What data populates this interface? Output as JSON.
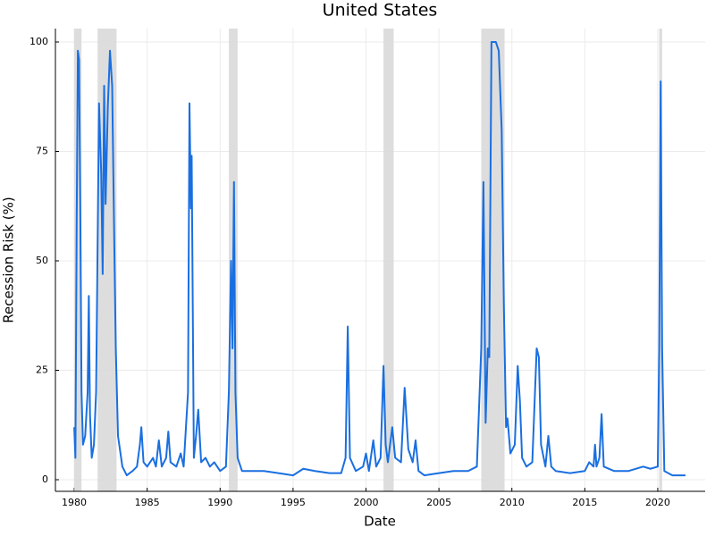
{
  "chart_data": {
    "type": "line",
    "title": "United States",
    "x_label": "Date",
    "y_label": "Recession Risk (%)",
    "xlim": [
      1978.71,
      2023.25
    ],
    "ylim": [
      -2.65,
      103.06
    ],
    "xticks": [
      1980,
      1985,
      1990,
      1995,
      2000,
      2005,
      2010,
      2015,
      2020
    ],
    "yticks": [
      0,
      25,
      50,
      75,
      100
    ],
    "grid": true,
    "recession_color": "#d9d9d9",
    "recessions": [
      [
        1980.0,
        1980.5
      ],
      [
        1981.6,
        1982.9
      ],
      [
        1990.6,
        1991.2
      ],
      [
        2001.2,
        2001.9
      ],
      [
        2007.9,
        2009.5
      ],
      [
        2020.1,
        2020.3
      ]
    ],
    "x": [
      1980.0,
      1980.08,
      1980.17,
      1980.25,
      1980.33,
      1980.42,
      1980.5,
      1980.6,
      1980.75,
      1980.92,
      1981.0,
      1981.08,
      1981.2,
      1981.35,
      1981.5,
      1981.7,
      1981.85,
      1981.95,
      1982.05,
      1982.15,
      1982.3,
      1982.45,
      1982.6,
      1982.75,
      1982.85,
      1983.0,
      1983.3,
      1983.6,
      1984.0,
      1984.3,
      1984.5,
      1984.6,
      1984.75,
      1985.0,
      1985.4,
      1985.6,
      1985.8,
      1986.0,
      1986.3,
      1986.45,
      1986.6,
      1987.0,
      1987.3,
      1987.5,
      1987.8,
      1987.9,
      1988.0,
      1988.05,
      1988.2,
      1988.35,
      1988.5,
      1988.7,
      1989.0,
      1989.3,
      1989.6,
      1990.0,
      1990.4,
      1990.6,
      1990.75,
      1990.85,
      1990.95,
      1991.05,
      1991.2,
      1991.5,
      1992.0,
      1993.0,
      1994.0,
      1995.0,
      1995.7,
      1996.5,
      1997.5,
      1998.3,
      1998.6,
      1998.75,
      1998.9,
      1999.3,
      1999.8,
      2000.0,
      2000.2,
      2000.5,
      2000.7,
      2001.0,
      2001.2,
      2001.35,
      2001.5,
      2001.8,
      2002.0,
      2002.4,
      2002.65,
      2002.9,
      2003.2,
      2003.4,
      2003.6,
      2004.0,
      2005.0,
      2006.0,
      2007.0,
      2007.6,
      2007.9,
      2008.05,
      2008.2,
      2008.35,
      2008.45,
      2008.6,
      2008.9,
      2009.1,
      2009.3,
      2009.45,
      2009.6,
      2009.7,
      2009.9,
      2010.2,
      2010.4,
      2010.55,
      2010.7,
      2011.0,
      2011.4,
      2011.7,
      2011.85,
      2012.0,
      2012.3,
      2012.5,
      2012.7,
      2013.0,
      2014.0,
      2015.0,
      2015.3,
      2015.6,
      2015.7,
      2015.8,
      2016.0,
      2016.15,
      2016.3,
      2017.0,
      2018.0,
      2019.0,
      2019.5,
      2020.0,
      2020.1,
      2020.2,
      2020.3,
      2020.45,
      2021.0,
      2021.9
    ],
    "series": [
      {
        "color": "#1a6fe0",
        "values": [
          12,
          5,
          60,
          98,
          96,
          60,
          20,
          8,
          10,
          20,
          42,
          15,
          5,
          8,
          20,
          86,
          70,
          47,
          90,
          63,
          85,
          98,
          90,
          53,
          30,
          10,
          3,
          1,
          2,
          3,
          8,
          12,
          4,
          3,
          5,
          3,
          9,
          3,
          5,
          11,
          4,
          3,
          6,
          3,
          20,
          86,
          62,
          74,
          5,
          10,
          16,
          4,
          5,
          3,
          4,
          2,
          3,
          20,
          50,
          30,
          68,
          20,
          5,
          2,
          2,
          2,
          1.5,
          1,
          2.5,
          2,
          1.5,
          1.5,
          5,
          35,
          5,
          2,
          3,
          6,
          2,
          9,
          3,
          5,
          26,
          8,
          4,
          12,
          5,
          4,
          21,
          7,
          4,
          9,
          2,
          1,
          1.5,
          2,
          2,
          3,
          30,
          68,
          13,
          30,
          28,
          100,
          100,
          98,
          80,
          40,
          12,
          14,
          6,
          8,
          26,
          18,
          5,
          3,
          4,
          30,
          28,
          8,
          3,
          10,
          3,
          2,
          1.5,
          2,
          4,
          3,
          8,
          3,
          5,
          15,
          3,
          2,
          2,
          3,
          2.5,
          3,
          30,
          91,
          30,
          2,
          1,
          1
        ]
      }
    ]
  }
}
